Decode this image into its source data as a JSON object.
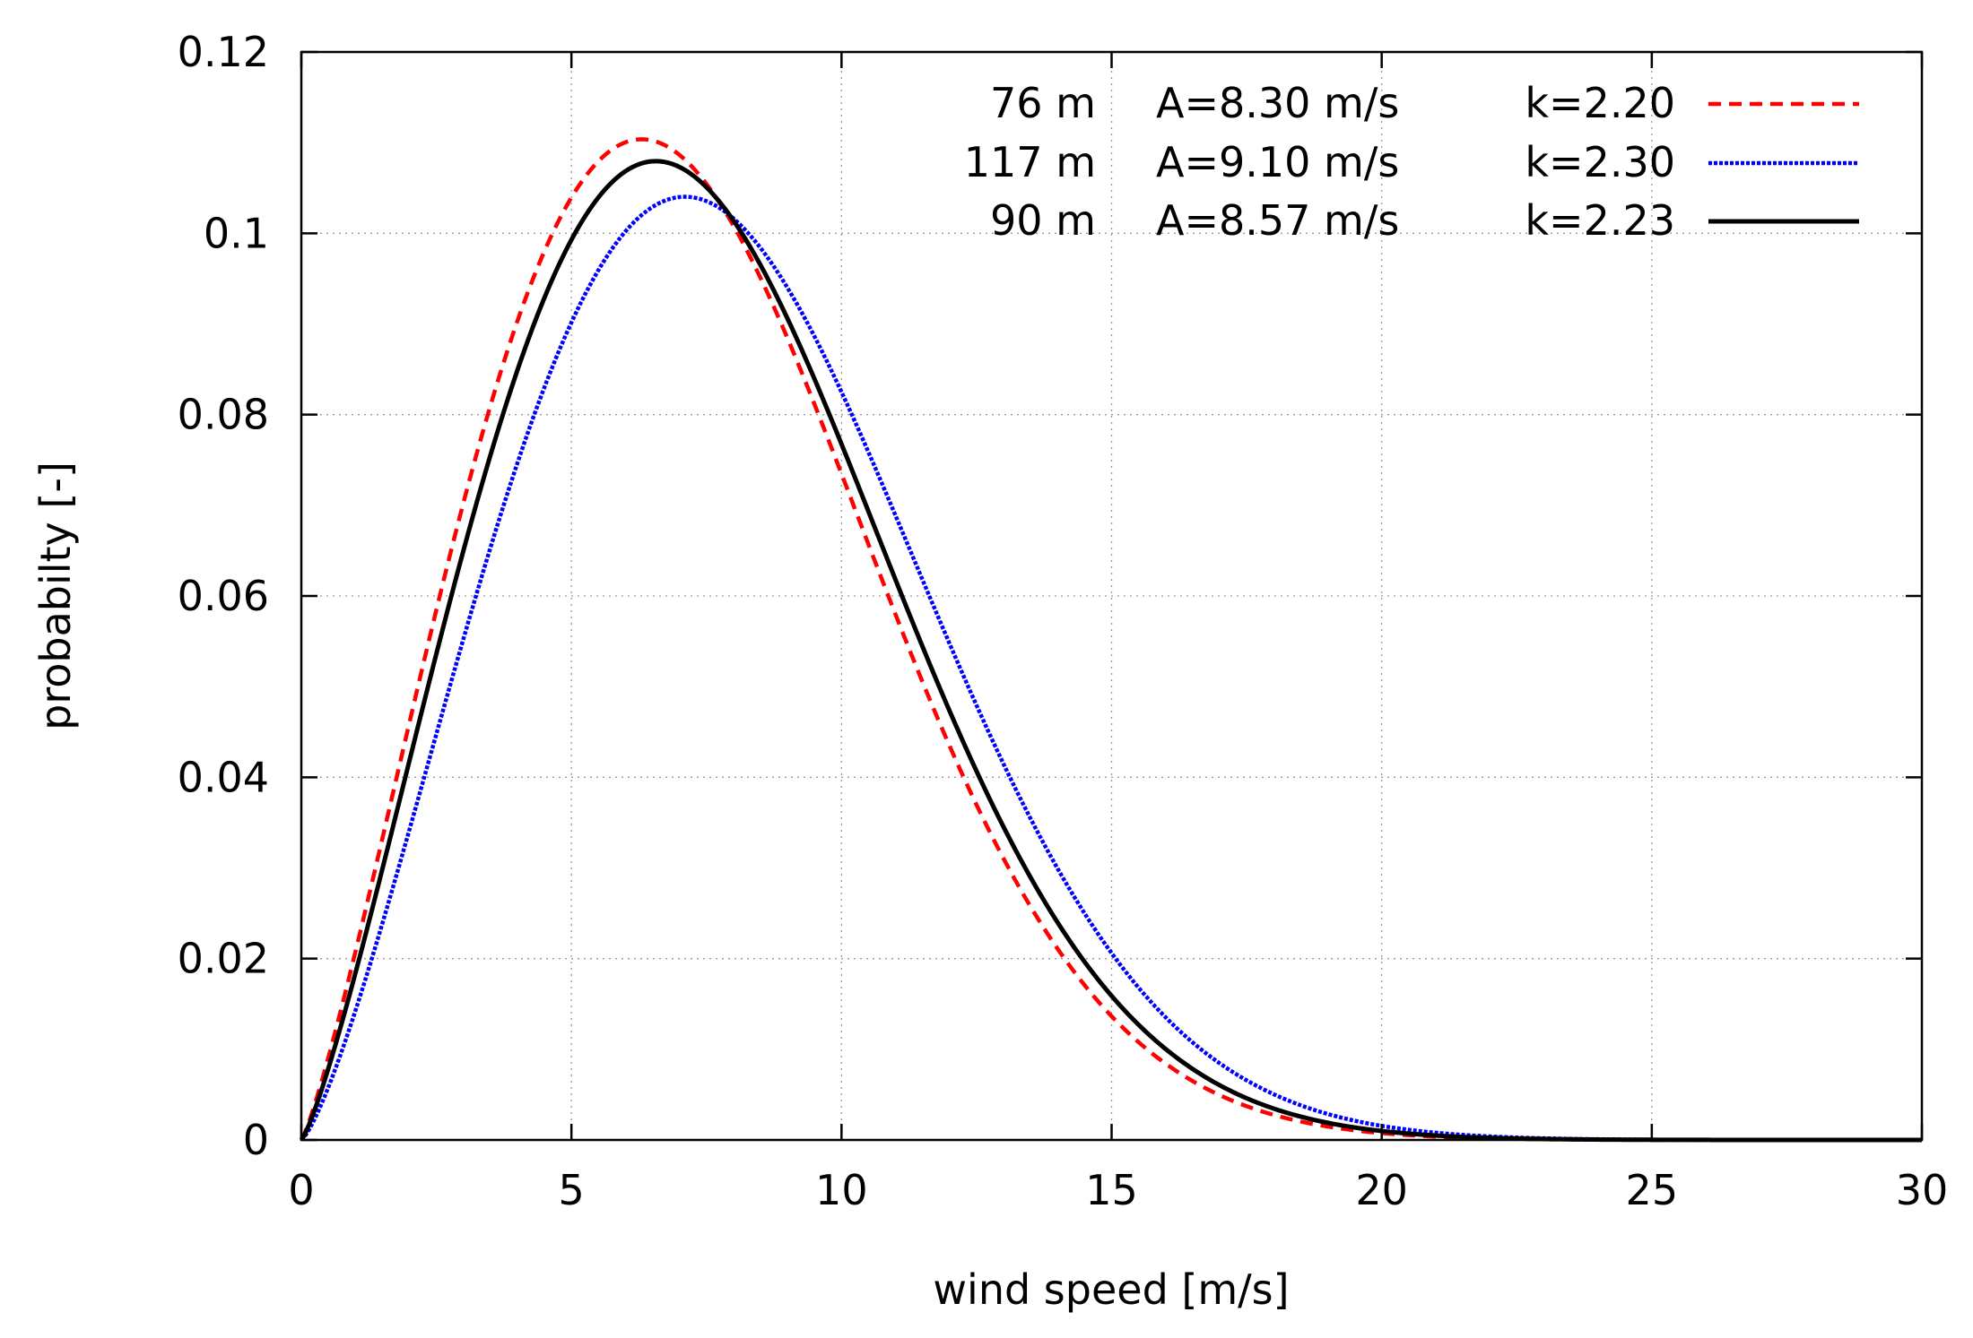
{
  "chart_data": {
    "type": "line",
    "title": "",
    "xlabel": "wind speed [m/s]",
    "ylabel": "probabilty [-]",
    "xlim": [
      0,
      30
    ],
    "ylim": [
      0,
      0.12
    ],
    "xticks": [
      0,
      5,
      10,
      15,
      20,
      25,
      30
    ],
    "xtick_labels": [
      "0",
      "5",
      "10",
      "15",
      "20",
      "25",
      "30"
    ],
    "yticks": [
      0,
      0.02,
      0.04,
      0.06,
      0.08,
      0.1,
      0.12
    ],
    "ytick_labels": [
      "0",
      "0.02",
      "0.04",
      "0.06",
      "0.08",
      "0.1",
      "0.12"
    ],
    "grid": true,
    "legend_position": "top-right",
    "series": [
      {
        "name": "76 m",
        "height": "76 m",
        "A_label": "A=8.30 m/s",
        "k_label": "k=2.20",
        "A": 8.3,
        "k": 2.2,
        "color": "#ff0000",
        "style": "dashed"
      },
      {
        "name": "117 m",
        "height": "117 m",
        "A_label": "A=9.10 m/s",
        "k_label": "k=2.30",
        "A": 9.1,
        "k": 2.3,
        "color": "#0000ff",
        "style": "dotted"
      },
      {
        "name": "90 m",
        "height": "90 m",
        "A_label": "A=8.57 m/s",
        "k_label": "k=2.23",
        "A": 8.57,
        "k": 2.23,
        "color": "#000000",
        "style": "solid"
      }
    ]
  }
}
